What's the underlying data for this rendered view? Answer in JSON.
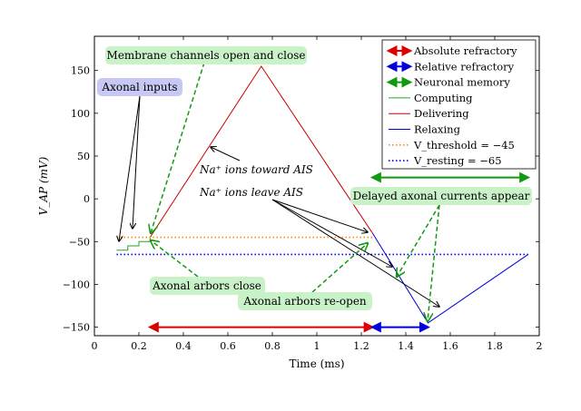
{
  "chart_data": {
    "type": "line",
    "xlabel": "Time (ms)",
    "ylabel": "V_AP (mV)",
    "xlim": [
      0,
      2
    ],
    "ylim": [
      -160,
      190
    ],
    "xticks": [
      0,
      0.2,
      0.4,
      0.6,
      0.8,
      1,
      1.2,
      1.4,
      1.6,
      1.8,
      2
    ],
    "xtick_labels": [
      "0",
      "0.2",
      "0.4",
      "0.6",
      "0.8",
      "1",
      "1.2",
      "1.4",
      "1.6",
      "1.8",
      "2"
    ],
    "yticks": [
      150,
      100,
      50,
      0,
      -50,
      -100,
      -150
    ],
    "ytick_labels": [
      "150",
      "100",
      "50",
      "0",
      "−50",
      "−100",
      "−150"
    ],
    "series": [
      {
        "name": "Computing",
        "color": "#2ca02c",
        "style": "solid",
        "x": [
          0.1,
          0.15,
          0.15,
          0.2,
          0.2,
          0.25,
          0.25
        ],
        "y": [
          -60,
          -60,
          -55,
          -55,
          -50,
          -50,
          -45
        ]
      },
      {
        "name": "Delivering",
        "color": "#cc0000",
        "style": "solid",
        "x": [
          0.25,
          0.75,
          1.25
        ],
        "y": [
          -45,
          155,
          -40
        ]
      },
      {
        "name": "Relaxing",
        "color": "#0000dd",
        "style": "solid",
        "x": [
          1.25,
          1.5,
          1.95
        ],
        "y": [
          -40,
          -145,
          -65
        ]
      },
      {
        "name": "V_threshold = −45",
        "color": "#ff8c00",
        "style": "dotted",
        "x": [
          0.1,
          1.25
        ],
        "y": [
          -45,
          -45
        ]
      },
      {
        "name": "V_resting = −65",
        "color": "#0000dd",
        "style": "dotted",
        "x": [
          0.1,
          1.95
        ],
        "y": [
          -65,
          -65
        ]
      }
    ],
    "intervals": [
      {
        "name": "Absolute refractory",
        "color": "#dd0000",
        "x0": 0.25,
        "x1": 1.25,
        "y": -150
      },
      {
        "name": "Relative refractory",
        "color": "#0000dd",
        "x0": 1.25,
        "x1": 1.5,
        "y": -150
      },
      {
        "name": "Neuronal memory",
        "color": "#119911",
        "x0": 1.25,
        "x1": 1.95,
        "y": 25
      }
    ],
    "legend": {
      "position": "top-right",
      "entries": [
        {
          "label": "Absolute refractory",
          "color": "#dd0000",
          "kind": "double-arrow"
        },
        {
          "label": "Relative refractory",
          "color": "#0000dd",
          "kind": "double-arrow"
        },
        {
          "label": "Neuronal memory",
          "color": "#119911",
          "kind": "double-arrow"
        },
        {
          "label": "Computing",
          "color": "#2ca02c",
          "kind": "line"
        },
        {
          "label": "Delivering",
          "color": "#cc0000",
          "kind": "line"
        },
        {
          "label": "Relaxing",
          "color": "#0000dd",
          "kind": "line"
        },
        {
          "label": "V_threshold = −45",
          "color": "#ff8c00",
          "kind": "dotted"
        },
        {
          "label": "V_resting = −65",
          "color": "#0000dd",
          "kind": "dotted"
        }
      ]
    },
    "annotations": [
      {
        "text": "Membrane channels open and close",
        "box": "green"
      },
      {
        "text": "Axonal inputs",
        "box": "blue"
      },
      {
        "text": "Na⁺ ions toward AIS",
        "box": "none"
      },
      {
        "text": "Na⁺ ions leave AIS",
        "box": "none"
      },
      {
        "text": "Delayed axonal currents appear",
        "box": "green"
      },
      {
        "text": "Axonal arbors close",
        "box": "green"
      },
      {
        "text": "Axonal arbors re-open",
        "box": "green"
      }
    ]
  }
}
